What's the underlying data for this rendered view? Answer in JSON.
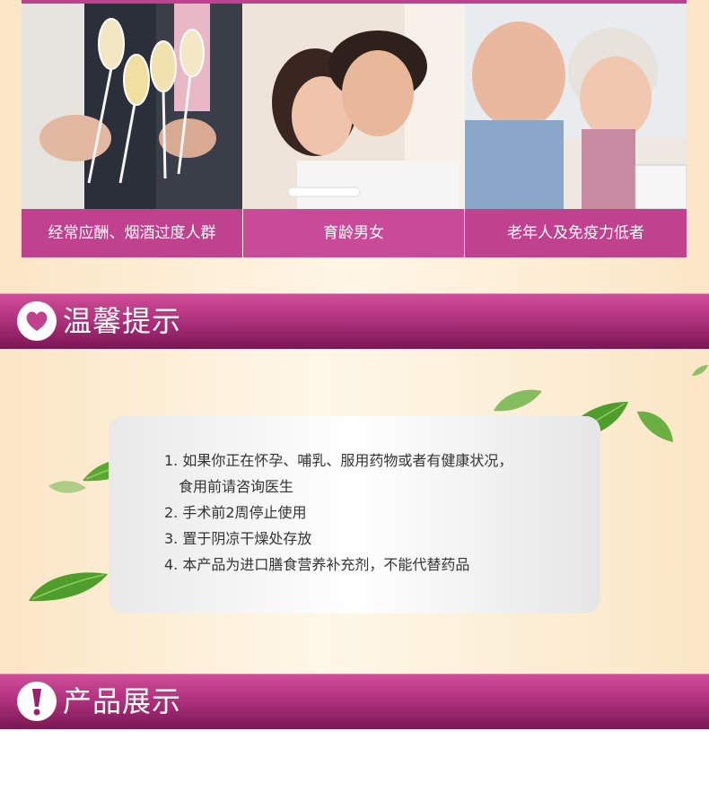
{
  "audience": {
    "groups": [
      {
        "label": "经常应酬、烟酒过度人群"
      },
      {
        "label": "育龄男女"
      },
      {
        "label": "老年人及免疫力低者"
      }
    ]
  },
  "sections": {
    "tips_title": "温馨提示",
    "product_title": "产品展示"
  },
  "tips": {
    "items": [
      "1. 如果你正在怀孕、哺乳、服用药物或者有健康状况，",
      "食用前请咨询医生",
      "2. 手术前2周停止使用",
      "3. 置于阴凉干燥处存放",
      "4. 本产品为进口膳食营养补充剂，不能代替药品"
    ]
  },
  "icons": {
    "tips": "heart-icon",
    "product": "exclamation-icon",
    "decor": "leaf-icon"
  },
  "colors": {
    "accent": "#c0418d",
    "bar_dark": "#7a1653",
    "leaf": "#5aa832",
    "cream": "#fbe6c5"
  }
}
